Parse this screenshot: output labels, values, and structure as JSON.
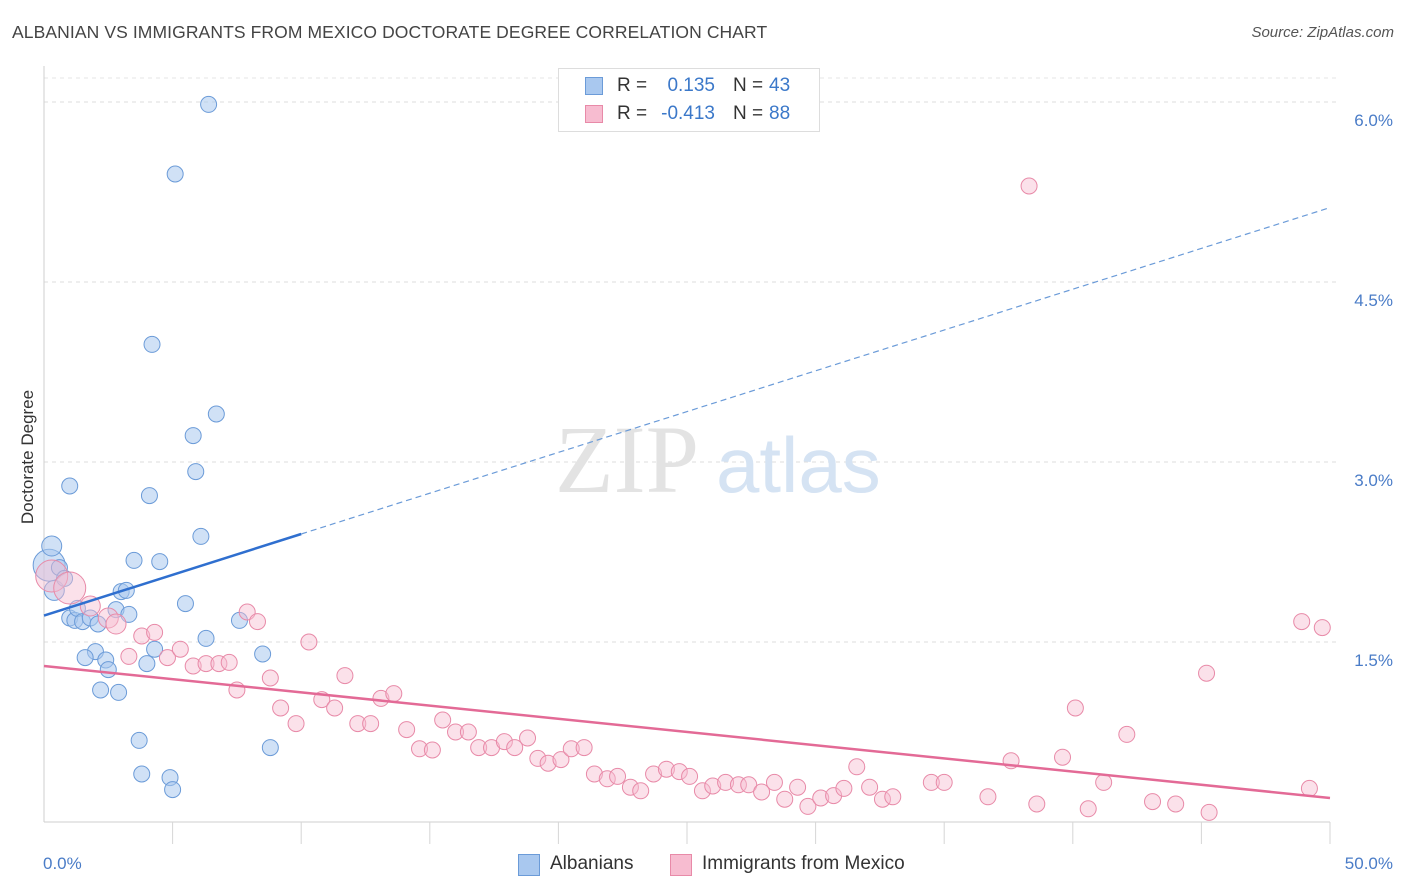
{
  "title": "ALBANIAN VS IMMIGRANTS FROM MEXICO DOCTORATE DEGREE CORRELATION CHART",
  "source": "Source: ZipAtlas.com",
  "watermark": {
    "zip": "ZIP",
    "atlas": "atlas"
  },
  "legend": {
    "r_label": "R =",
    "n_label": "N =",
    "series": [
      {
        "name": "Albanians",
        "r": "0.135",
        "n": "43",
        "fill": "#a9c8ef",
        "stroke": "#6b9bd8"
      },
      {
        "name": "Immigrants from Mexico",
        "r": "-0.413",
        "n": "88",
        "fill": "#f7bcd0",
        "stroke": "#e88aa8"
      }
    ]
  },
  "chart_data": {
    "type": "scatter",
    "title": "ALBANIAN VS IMMIGRANTS FROM MEXICO DOCTORATE DEGREE CORRELATION CHART",
    "xlabel": "",
    "ylabel": "Doctorate Degree",
    "xlim": [
      0,
      50
    ],
    "ylim": [
      0,
      6.2
    ],
    "x_tick_labels": [
      {
        "value": 0,
        "label": "0.0%"
      },
      {
        "value": 50,
        "label": "50.0%"
      }
    ],
    "y_ticks": [
      {
        "value": 1.5,
        "label": "1.5%"
      },
      {
        "value": 3.0,
        "label": "3.0%"
      },
      {
        "value": 4.5,
        "label": "4.5%"
      },
      {
        "value": 6.0,
        "label": "6.0%"
      }
    ],
    "series": [
      {
        "name": "Albanians",
        "color": "#6b9bd8",
        "trend": {
          "x0": 0,
          "y0": 1.72,
          "x1": 10,
          "y1": 2.4,
          "dashed_to_x": 50,
          "dashed_to_y": 5.12
        },
        "points": [
          [
            0.2,
            2.14,
            16
          ],
          [
            0.3,
            2.3,
            10
          ],
          [
            0.4,
            1.93,
            10
          ],
          [
            0.6,
            2.12,
            8
          ],
          [
            0.8,
            2.03,
            8
          ],
          [
            1.0,
            1.7,
            8
          ],
          [
            1.2,
            1.68,
            8
          ],
          [
            1.3,
            1.78,
            8
          ],
          [
            1.5,
            1.67,
            8
          ],
          [
            1.8,
            1.7,
            8
          ],
          [
            2.0,
            1.42,
            8
          ],
          [
            2.1,
            1.65,
            8
          ],
          [
            2.2,
            1.1,
            8
          ],
          [
            2.4,
            1.35,
            8
          ],
          [
            2.5,
            1.27,
            8
          ],
          [
            1.6,
            1.37,
            8
          ],
          [
            2.8,
            1.77,
            8
          ],
          [
            2.9,
            1.08,
            8
          ],
          [
            3.0,
            1.92,
            8
          ],
          [
            3.2,
            1.93,
            8
          ],
          [
            3.3,
            1.73,
            8
          ],
          [
            3.5,
            2.18,
            8
          ],
          [
            3.7,
            0.68,
            8
          ],
          [
            3.8,
            0.4,
            8
          ],
          [
            4.0,
            1.32,
            8
          ],
          [
            4.1,
            2.72,
            8
          ],
          [
            4.2,
            3.98,
            8
          ],
          [
            4.3,
            1.44,
            8
          ],
          [
            4.5,
            2.17,
            8
          ],
          [
            4.9,
            0.37,
            8
          ],
          [
            5.0,
            0.27,
            8
          ],
          [
            5.1,
            5.4,
            8
          ],
          [
            5.5,
            1.82,
            8
          ],
          [
            5.8,
            3.22,
            8
          ],
          [
            5.9,
            2.92,
            8
          ],
          [
            6.1,
            2.38,
            8
          ],
          [
            6.3,
            1.53,
            8
          ],
          [
            6.4,
            5.98,
            8
          ],
          [
            6.7,
            3.4,
            8
          ],
          [
            7.6,
            1.68,
            8
          ],
          [
            8.5,
            1.4,
            8
          ],
          [
            8.8,
            0.62,
            8
          ],
          [
            1.0,
            2.8,
            8
          ]
        ]
      },
      {
        "name": "Immigrants from Mexico",
        "color": "#e88aa8",
        "trend": {
          "x0": 0,
          "y0": 1.3,
          "x1": 50,
          "y1": 0.2
        },
        "points": [
          [
            0.3,
            2.05,
            16
          ],
          [
            1.0,
            1.95,
            16
          ],
          [
            1.8,
            1.8,
            10
          ],
          [
            2.5,
            1.7,
            10
          ],
          [
            2.8,
            1.65,
            10
          ],
          [
            3.3,
            1.38,
            8
          ],
          [
            3.8,
            1.55,
            8
          ],
          [
            4.3,
            1.58,
            8
          ],
          [
            4.8,
            1.37,
            8
          ],
          [
            5.3,
            1.44,
            8
          ],
          [
            5.8,
            1.3,
            8
          ],
          [
            6.3,
            1.32,
            8
          ],
          [
            6.8,
            1.32,
            8
          ],
          [
            7.2,
            1.33,
            8
          ],
          [
            7.5,
            1.1,
            8
          ],
          [
            7.9,
            1.75,
            8
          ],
          [
            8.3,
            1.67,
            8
          ],
          [
            8.8,
            1.2,
            8
          ],
          [
            9.2,
            0.95,
            8
          ],
          [
            9.8,
            0.82,
            8
          ],
          [
            10.3,
            1.5,
            8
          ],
          [
            10.8,
            1.02,
            8
          ],
          [
            11.3,
            0.95,
            8
          ],
          [
            11.7,
            1.22,
            8
          ],
          [
            12.2,
            0.82,
            8
          ],
          [
            12.7,
            0.82,
            8
          ],
          [
            13.1,
            1.03,
            8
          ],
          [
            13.6,
            1.07,
            8
          ],
          [
            14.1,
            0.77,
            8
          ],
          [
            14.6,
            0.61,
            8
          ],
          [
            15.1,
            0.6,
            8
          ],
          [
            15.5,
            0.85,
            8
          ],
          [
            16.0,
            0.75,
            8
          ],
          [
            16.5,
            0.75,
            8
          ],
          [
            16.9,
            0.62,
            8
          ],
          [
            17.4,
            0.62,
            8
          ],
          [
            17.9,
            0.67,
            8
          ],
          [
            18.3,
            0.62,
            8
          ],
          [
            18.8,
            0.7,
            8
          ],
          [
            19.2,
            0.53,
            8
          ],
          [
            19.6,
            0.49,
            8
          ],
          [
            20.1,
            0.52,
            8
          ],
          [
            20.5,
            0.61,
            8
          ],
          [
            21.0,
            0.62,
            8
          ],
          [
            21.4,
            0.4,
            8
          ],
          [
            21.9,
            0.36,
            8
          ],
          [
            22.3,
            0.38,
            8
          ],
          [
            22.8,
            0.29,
            8
          ],
          [
            23.2,
            0.26,
            8
          ],
          [
            23.7,
            0.4,
            8
          ],
          [
            24.2,
            0.44,
            8
          ],
          [
            24.7,
            0.42,
            8
          ],
          [
            25.1,
            0.38,
            8
          ],
          [
            25.6,
            0.26,
            8
          ],
          [
            26.0,
            0.3,
            8
          ],
          [
            26.5,
            0.33,
            8
          ],
          [
            27.0,
            0.31,
            8
          ],
          [
            27.4,
            0.31,
            8
          ],
          [
            27.9,
            0.25,
            8
          ],
          [
            28.4,
            0.33,
            8
          ],
          [
            28.8,
            0.19,
            8
          ],
          [
            29.3,
            0.29,
            8
          ],
          [
            29.7,
            0.13,
            8
          ],
          [
            30.2,
            0.2,
            8
          ],
          [
            30.7,
            0.22,
            8
          ],
          [
            31.1,
            0.28,
            8
          ],
          [
            31.6,
            0.46,
            8
          ],
          [
            32.1,
            0.29,
            8
          ],
          [
            32.6,
            0.19,
            8
          ],
          [
            33.0,
            0.21,
            8
          ],
          [
            34.5,
            0.33,
            8
          ],
          [
            35.0,
            0.33,
            8
          ],
          [
            38.3,
            5.3,
            8
          ],
          [
            36.7,
            0.21,
            8
          ],
          [
            37.6,
            0.51,
            8
          ],
          [
            38.6,
            0.15,
            8
          ],
          [
            39.6,
            0.54,
            8
          ],
          [
            40.1,
            0.95,
            8
          ],
          [
            40.6,
            0.11,
            8
          ],
          [
            41.2,
            0.33,
            8
          ],
          [
            42.1,
            0.73,
            8
          ],
          [
            43.1,
            0.17,
            8
          ],
          [
            44.0,
            0.15,
            8
          ],
          [
            45.2,
            1.24,
            8
          ],
          [
            45.3,
            0.08,
            8
          ],
          [
            48.9,
            1.67,
            8
          ],
          [
            49.7,
            1.62,
            8
          ],
          [
            49.2,
            0.28,
            8
          ]
        ]
      }
    ]
  }
}
